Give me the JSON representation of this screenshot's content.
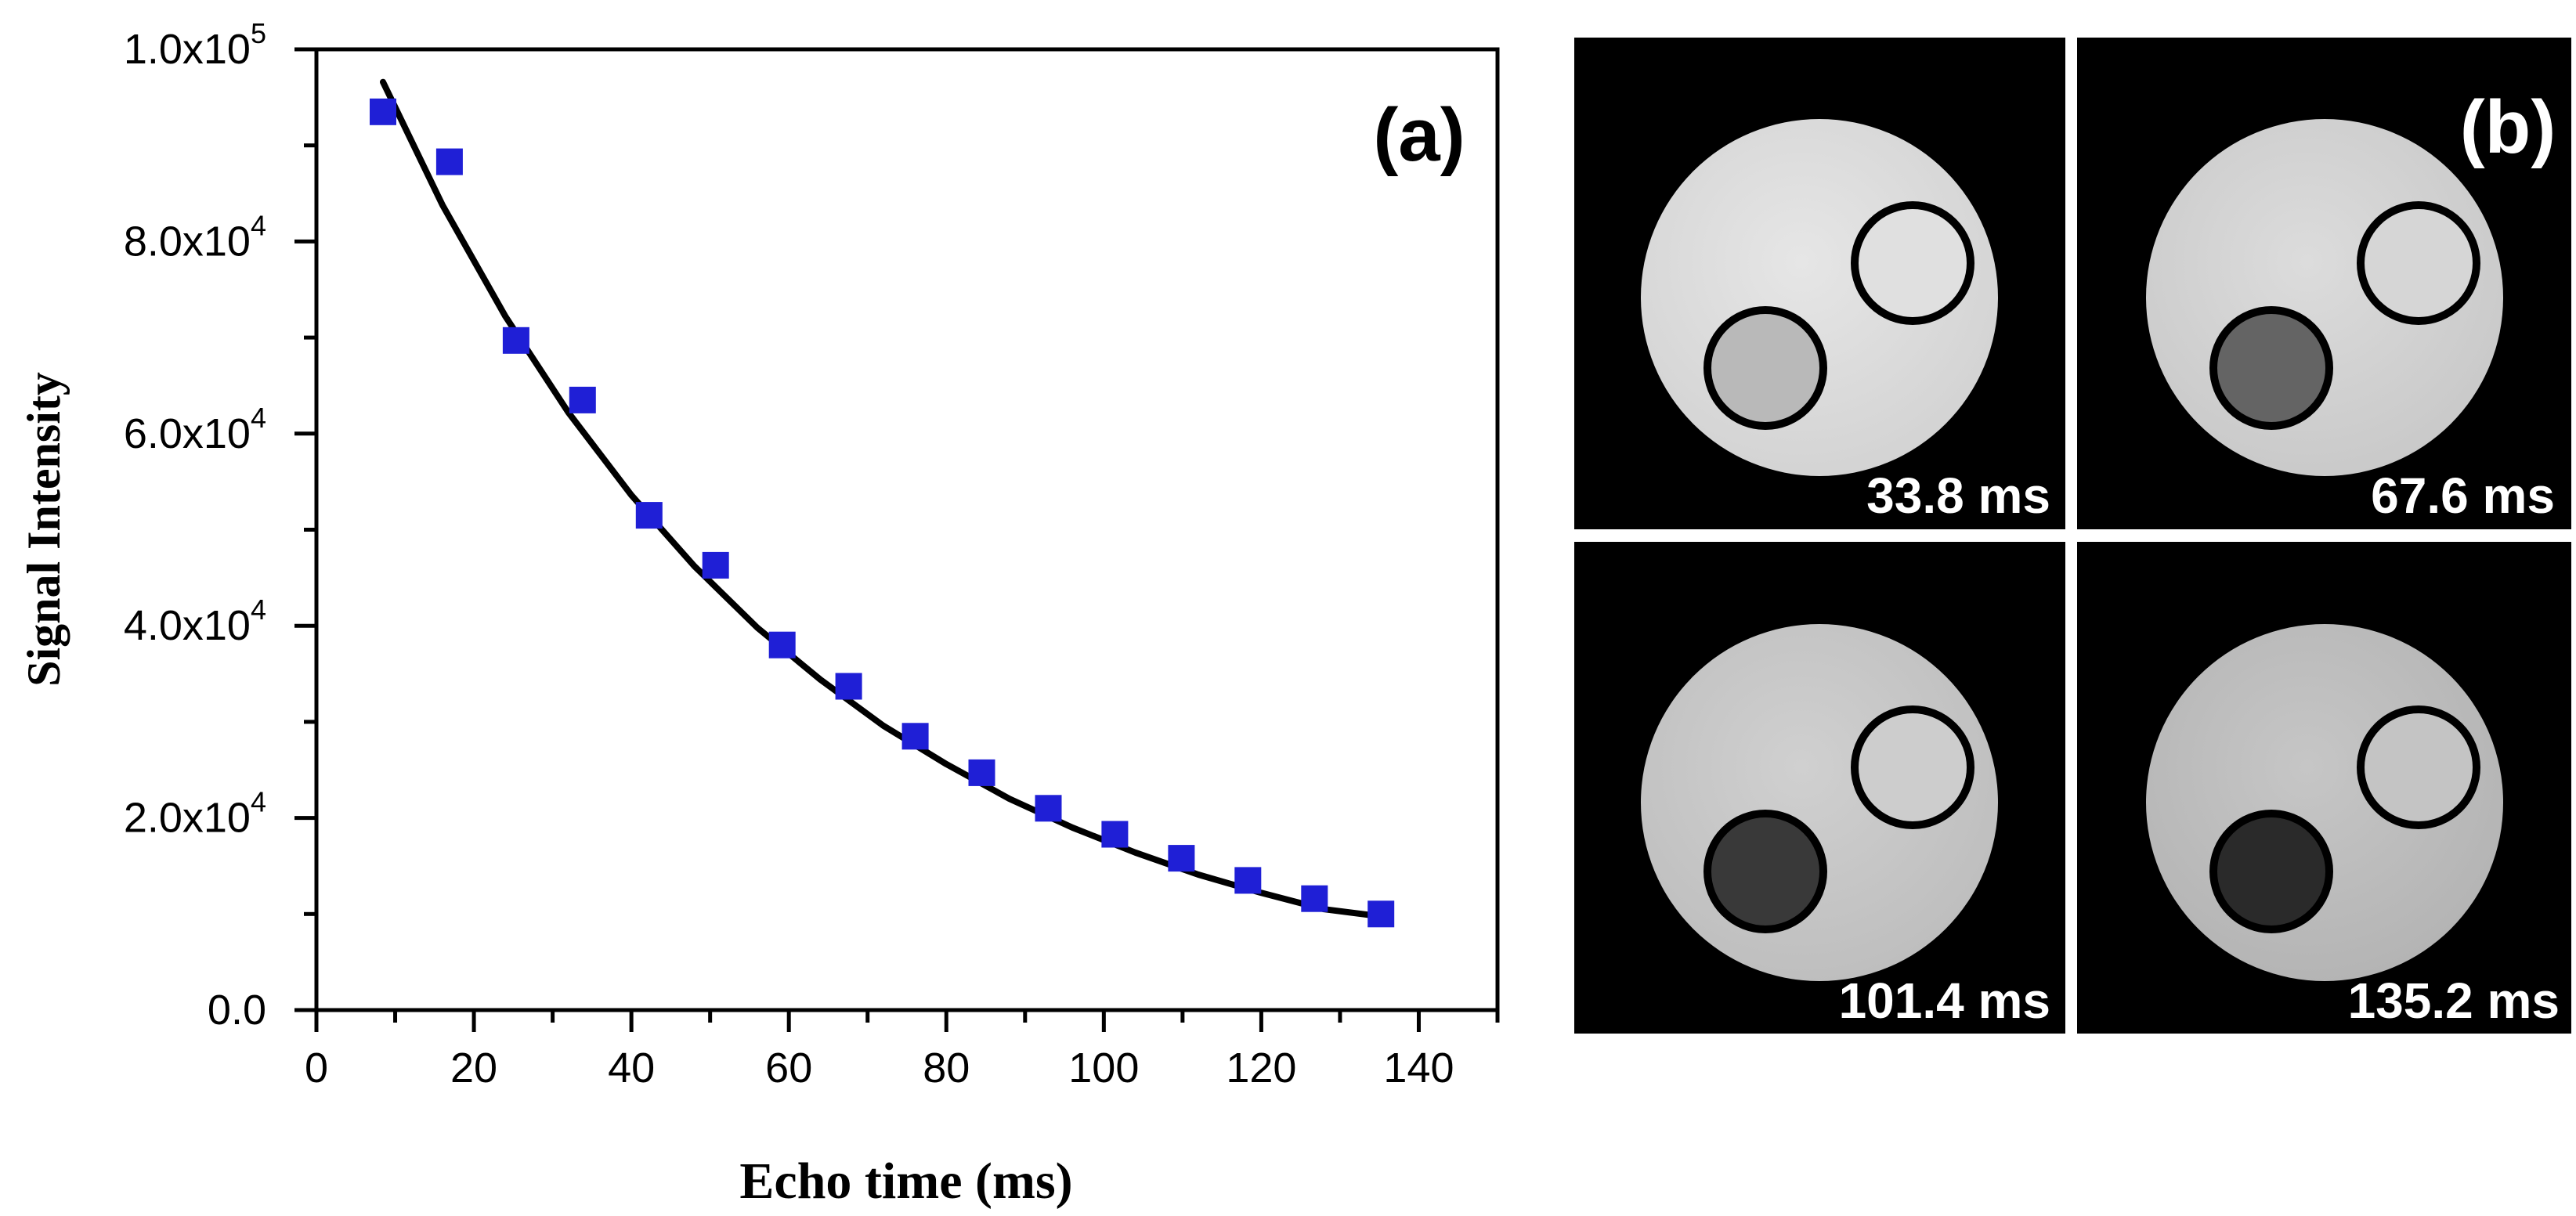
{
  "panel_a_label": "(a)",
  "panel_b_label": "(b)",
  "chart_data": {
    "type": "scatter",
    "xlabel": "Echo time (ms)",
    "ylabel": "Signal Intensity",
    "xlim": [
      0,
      150
    ],
    "ylim": [
      0,
      100000
    ],
    "x_ticks": [
      0,
      20,
      40,
      60,
      80,
      100,
      120,
      140
    ],
    "y_tick_labels": [
      {
        "value": 0,
        "mantissa": "0.0",
        "exponent": ""
      },
      {
        "value": 20000,
        "mantissa": "2.0x10",
        "exponent": "4"
      },
      {
        "value": 40000,
        "mantissa": "4.0x10",
        "exponent": "4"
      },
      {
        "value": 60000,
        "mantissa": "6.0x10",
        "exponent": "4"
      },
      {
        "value": 80000,
        "mantissa": "8.0x10",
        "exponent": "4"
      },
      {
        "value": 100000,
        "mantissa": "1.0x10",
        "exponent": "5"
      }
    ],
    "grid": false,
    "series": [
      {
        "type": "scatter",
        "marker": "square",
        "color": "#1f1fd6",
        "x": [
          8.45,
          16.9,
          25.35,
          33.8,
          42.25,
          50.7,
          59.15,
          67.6,
          76.05,
          84.5,
          92.95,
          101.4,
          109.85,
          118.3,
          126.75,
          135.2
        ],
        "y": [
          93500,
          88300,
          69700,
          63500,
          51500,
          46300,
          38000,
          33700,
          28500,
          24700,
          21000,
          18300,
          15800,
          13500,
          11600,
          10000
        ]
      },
      {
        "type": "line",
        "color": "#000000",
        "fit": "exponential decay",
        "x": [
          8.45,
          16,
          24,
          32,
          40,
          48,
          56,
          64,
          72,
          80,
          88,
          96,
          104,
          112,
          120,
          128,
          135.2
        ],
        "y": [
          96600,
          83800,
          72200,
          62200,
          53600,
          46200,
          39800,
          34400,
          29600,
          25600,
          22000,
          19000,
          16400,
          14100,
          12200,
          10500,
          9750
        ]
      }
    ]
  },
  "mri_panels": [
    {
      "echo_time": "33.8 ms",
      "outer_gray": "#d2d2d2",
      "center_gray": "#e6e6e6",
      "small_circle_gray": "#e0e0e0",
      "dark_circle_gray": "#b9b9b9"
    },
    {
      "echo_time": "67.6 ms",
      "outer_gray": "#c8c8c8",
      "center_gray": "#dcdcdc",
      "small_circle_gray": "#d6d6d6",
      "dark_circle_gray": "#646464"
    },
    {
      "echo_time": "101.4 ms",
      "outer_gray": "#bdbdbd",
      "center_gray": "#d0d0d0",
      "small_circle_gray": "#cdcdcd",
      "dark_circle_gray": "#393939"
    },
    {
      "echo_time": "135.2 ms",
      "outer_gray": "#b3b3b3",
      "center_gray": "#c6c6c6",
      "small_circle_gray": "#c4c4c4",
      "dark_circle_gray": "#2a2a2a"
    }
  ]
}
